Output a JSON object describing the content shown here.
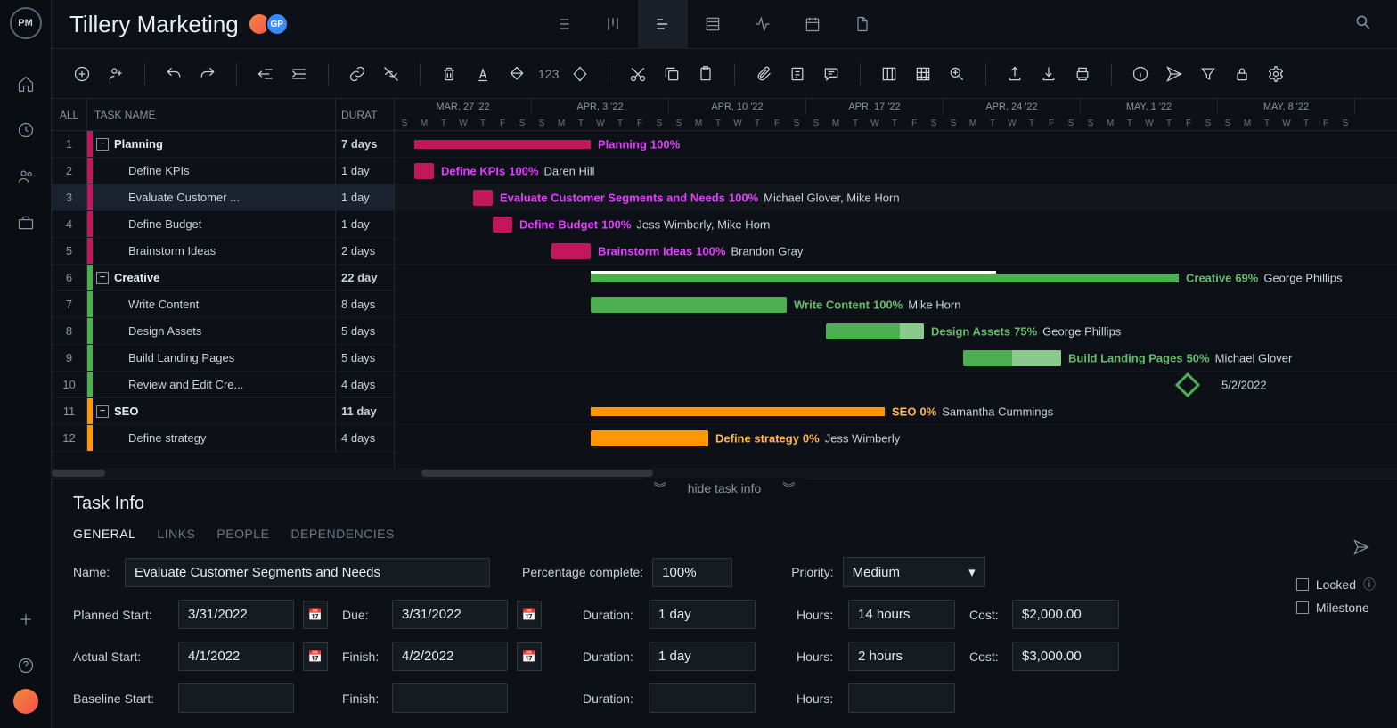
{
  "project": {
    "title": "Tillery Marketing"
  },
  "avatars": [
    {
      "initials": "",
      "bg": "linear-gradient(135deg,#f0883e,#f85149)"
    },
    {
      "initials": "GP",
      "bg": "#388bfd"
    }
  ],
  "task_list": {
    "header": {
      "all": "ALL",
      "name": "TASK NAME",
      "duration": "DURAT"
    },
    "rows": [
      {
        "num": "1",
        "color": "#c2185b",
        "name": "Planning",
        "duration": "7 days",
        "group": true
      },
      {
        "num": "2",
        "color": "#c2185b",
        "name": "Define KPIs",
        "duration": "1 day"
      },
      {
        "num": "3",
        "color": "#c2185b",
        "name": "Evaluate Customer ...",
        "duration": "1 day",
        "selected": true
      },
      {
        "num": "4",
        "color": "#c2185b",
        "name": "Define Budget",
        "duration": "1 day"
      },
      {
        "num": "5",
        "color": "#c2185b",
        "name": "Brainstorm Ideas",
        "duration": "2 days"
      },
      {
        "num": "6",
        "color": "#4caf50",
        "name": "Creative",
        "duration": "22 day",
        "group": true
      },
      {
        "num": "7",
        "color": "#4caf50",
        "name": "Write Content",
        "duration": "8 days"
      },
      {
        "num": "8",
        "color": "#4caf50",
        "name": "Design Assets",
        "duration": "5 days"
      },
      {
        "num": "9",
        "color": "#4caf50",
        "name": "Build Landing Pages",
        "duration": "5 days"
      },
      {
        "num": "10",
        "color": "#4caf50",
        "name": "Review and Edit Cre...",
        "duration": "4 days"
      },
      {
        "num": "11",
        "color": "#ff9800",
        "name": "SEO",
        "duration": "11 day",
        "group": true
      },
      {
        "num": "12",
        "color": "#ff9800",
        "name": "Define strategy",
        "duration": "4 days"
      }
    ]
  },
  "timeline": {
    "day_width": 22,
    "weeks": [
      {
        "label": "MAR, 27 '22",
        "days": 7
      },
      {
        "label": "APR, 3 '22",
        "days": 7
      },
      {
        "label": "APR, 10 '22",
        "days": 7
      },
      {
        "label": "APR, 17 '22",
        "days": 7
      },
      {
        "label": "APR, 24 '22",
        "days": 7
      },
      {
        "label": "MAY, 1 '22",
        "days": 7
      },
      {
        "label": "MAY, 8 '22",
        "days": 7
      }
    ],
    "day_labels": [
      "S",
      "M",
      "T",
      "W",
      "T",
      "F",
      "S"
    ]
  },
  "gantt_bars": [
    {
      "row": 0,
      "type": "group",
      "start": 1,
      "span": 9,
      "color": "#c2185b",
      "label_color": "#e040fb",
      "task": "Planning",
      "pct": "100%",
      "assigned": ""
    },
    {
      "row": 1,
      "type": "task",
      "start": 1,
      "span": 1,
      "color": "#c2185b",
      "label_color": "#e040fb",
      "task": "Define KPIs",
      "pct": "100%",
      "assigned": "Daren Hill"
    },
    {
      "row": 2,
      "type": "task",
      "start": 4,
      "span": 1,
      "color": "#c2185b",
      "label_color": "#e040fb",
      "task": "Evaluate Customer Segments and Needs",
      "pct": "100%",
      "assigned": "Michael Glover, Mike Horn"
    },
    {
      "row": 3,
      "type": "task",
      "start": 5,
      "span": 1,
      "color": "#c2185b",
      "label_color": "#e040fb",
      "task": "Define Budget",
      "pct": "100%",
      "assigned": "Jess Wimberly, Mike Horn"
    },
    {
      "row": 4,
      "type": "task",
      "start": 8,
      "span": 2,
      "color": "#c2185b",
      "label_color": "#e040fb",
      "task": "Brainstorm Ideas",
      "pct": "100%",
      "assigned": "Brandon Gray"
    },
    {
      "row": 5,
      "type": "group",
      "start": 10,
      "span": 30,
      "color": "#4caf50",
      "label_color": "#66bb6a",
      "task": "Creative",
      "pct": "69%",
      "assigned": "George Phillips",
      "progress": 69
    },
    {
      "row": 6,
      "type": "task",
      "start": 10,
      "span": 10,
      "color": "#4caf50",
      "label_color": "#66bb6a",
      "task": "Write Content",
      "pct": "100%",
      "assigned": "Mike Horn",
      "progress": 100
    },
    {
      "row": 7,
      "type": "task",
      "start": 22,
      "span": 5,
      "color": "#4caf50",
      "label_color": "#66bb6a",
      "task": "Design Assets",
      "pct": "75%",
      "assigned": "George Phillips",
      "progress": 75
    },
    {
      "row": 8,
      "type": "task",
      "start": 29,
      "span": 5,
      "color": "#4caf50",
      "label_color": "#66bb6a",
      "task": "Build Landing Pages",
      "pct": "50%",
      "assigned": "Michael Glover",
      "progress": 50
    },
    {
      "row": 9,
      "type": "milestone",
      "start": 40,
      "span": 0,
      "color": "#4caf50",
      "label_color": "#c9d1d9",
      "task": "5/2/2022",
      "pct": "",
      "assigned": ""
    },
    {
      "row": 10,
      "type": "group",
      "start": 10,
      "span": 15,
      "color": "#ff9800",
      "label_color": "#ffb74d",
      "task": "SEO",
      "pct": "0%",
      "assigned": "Samantha Cummings"
    },
    {
      "row": 11,
      "type": "task",
      "start": 10,
      "span": 6,
      "color": "#ff9800",
      "label_color": "#ffb74d",
      "task": "Define strategy",
      "pct": "0%",
      "assigned": "Jess Wimberly"
    }
  ],
  "task_info": {
    "panel_title": "Task Info",
    "hide_label": "hide task info",
    "tabs": [
      "GENERAL",
      "LINKS",
      "PEOPLE",
      "DEPENDENCIES"
    ],
    "active_tab": 0,
    "labels": {
      "name": "Name:",
      "pct_complete": "Percentage complete:",
      "priority": "Priority:",
      "planned_start": "Planned Start:",
      "due": "Due:",
      "actual_start": "Actual Start:",
      "finish": "Finish:",
      "baseline_start": "Baseline Start:",
      "baseline_finish": "Finish:",
      "duration": "Duration:",
      "hours": "Hours:",
      "cost": "Cost:",
      "locked": "Locked",
      "milestone": "Milestone"
    },
    "values": {
      "name": "Evaluate Customer Segments and Needs",
      "pct_complete": "100%",
      "priority": "Medium",
      "planned_start": "3/31/2022",
      "due": "3/31/2022",
      "planned_duration": "1 day",
      "planned_hours": "14 hours",
      "planned_cost": "$2,000.00",
      "actual_start": "4/1/2022",
      "actual_finish": "4/2/2022",
      "actual_duration": "1 day",
      "actual_hours": "2 hours",
      "actual_cost": "$3,000.00",
      "baseline_start": "",
      "baseline_finish": "",
      "baseline_duration": "",
      "baseline_hours": ""
    }
  },
  "colors": {
    "bg": "#0d1117",
    "panel": "#161b22",
    "border": "#1f2730",
    "text": "#c9d1d9",
    "text_dim": "#8b949e",
    "planning": "#c2185b",
    "creative": "#4caf50",
    "seo": "#ff9800"
  }
}
